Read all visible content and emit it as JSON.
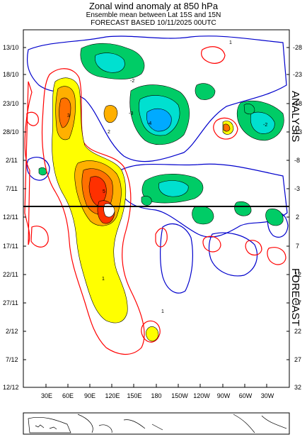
{
  "header": {
    "title": "Zonal wind anomaly at 850 hPa",
    "subtitle": "Ensemble mean between  Lat 15S and 15N",
    "forecast_line": "FORECAST  BASED 10/11/2025 00UTC"
  },
  "labels": {
    "analysis": "ANALYSIS",
    "forecast": "FORECAST"
  },
  "colors": {
    "positive_weak": "#ff0000",
    "positive_fill_1": "#ffff00",
    "positive_fill_2": "#ffb000",
    "positive_fill_3": "#ff7000",
    "positive_fill_4": "#ff3000",
    "negative_weak": "#0000cc",
    "negative_fill_1": "#00cc66",
    "negative_fill_2": "#00e0d0",
    "negative_fill_3": "#00aaff",
    "initial_time_line": "#000000"
  },
  "chart_data": {
    "type": "heatmap",
    "title": "Zonal wind anomaly at 850 hPa",
    "x_ticks": [
      "30E",
      "60E",
      "90E",
      "120E",
      "150E",
      "180",
      "150W",
      "120W",
      "90W",
      "60W",
      "30W"
    ],
    "y_ticks_left": [
      "13/10",
      "18/10",
      "23/10",
      "28/10",
      "2/11",
      "7/11",
      "12/11",
      "17/11",
      "22/11",
      "27/11",
      "2/12",
      "7/12",
      "12/12"
    ],
    "y_ticks_right": [
      "-28",
      "-23",
      "-18",
      "-13",
      "-8",
      "-3",
      "2",
      "7",
      "12",
      "17",
      "22",
      "27",
      "32"
    ],
    "initial_time": "10/11/2025",
    "contour_labels": [
      "-1",
      "1",
      "2",
      "3",
      "4",
      "5",
      "6",
      "-2",
      "-3",
      "-4",
      "-5"
    ],
    "features": [
      {
        "sign": "positive",
        "lon_start": 60,
        "lon_end": 180,
        "date_start": "18/10",
        "date_end": "12/12",
        "peak": 6
      },
      {
        "sign": "negative",
        "lon_start": 60,
        "lon_end": 360,
        "date_start": "13/10",
        "date_end": "12/11",
        "peak": -5
      }
    ]
  }
}
